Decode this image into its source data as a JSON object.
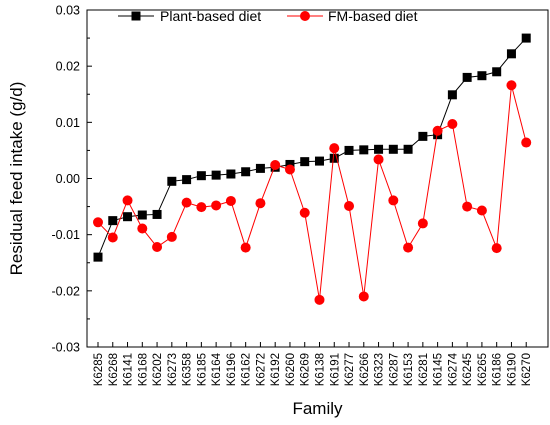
{
  "chart_data": {
    "type": "line",
    "title": "",
    "xlabel": "Family",
    "ylabel": "Residual feed intake (g/d)",
    "ylim": [
      -0.03,
      0.03
    ],
    "yticks": [
      "-0.03",
      "-0.02",
      "-0.01",
      "0.00",
      "0.01",
      "0.02",
      "0.03"
    ],
    "grid": false,
    "legend_position": "top",
    "categories": [
      "K6285",
      "K6268",
      "K6141",
      "K6168",
      "K6202",
      "K6273",
      "K6358",
      "K6185",
      "K6164",
      "K6196",
      "K6162",
      "K6272",
      "K6192",
      "K6260",
      "K6269",
      "K6138",
      "K6191",
      "K6277",
      "K6266",
      "K6323",
      "K6287",
      "K6153",
      "K6281",
      "K6145",
      "K6274",
      "K6245",
      "K6265",
      "K6186",
      "K6190",
      "K6270"
    ],
    "series": [
      {
        "name": "Plant-based diet",
        "color": "#000000",
        "marker": "square",
        "values": [
          -0.014,
          -0.0075,
          -0.0068,
          -0.0065,
          -0.0064,
          -0.0005,
          -0.0002,
          0.0005,
          0.0006,
          0.0008,
          0.0012,
          0.0018,
          0.002,
          0.0025,
          0.003,
          0.0031,
          0.0036,
          0.005,
          0.0051,
          0.0052,
          0.0052,
          0.0052,
          0.0075,
          0.0078,
          0.0149,
          0.018,
          0.0183,
          0.019,
          0.0222,
          0.025
        ]
      },
      {
        "name": "FM-based diet",
        "color": "#ff0000",
        "marker": "circle",
        "values": [
          -0.0078,
          -0.0105,
          -0.0039,
          -0.0089,
          -0.0122,
          -0.0104,
          -0.0043,
          -0.0051,
          -0.0048,
          -0.004,
          -0.0123,
          -0.0044,
          0.0024,
          0.0016,
          -0.0061,
          -0.0216,
          0.0054,
          -0.0049,
          -0.021,
          0.0034,
          -0.0039,
          -0.0123,
          -0.008,
          0.0085,
          0.0097,
          -0.005,
          -0.0057,
          -0.0124,
          0.0166,
          0.0064
        ]
      }
    ]
  }
}
